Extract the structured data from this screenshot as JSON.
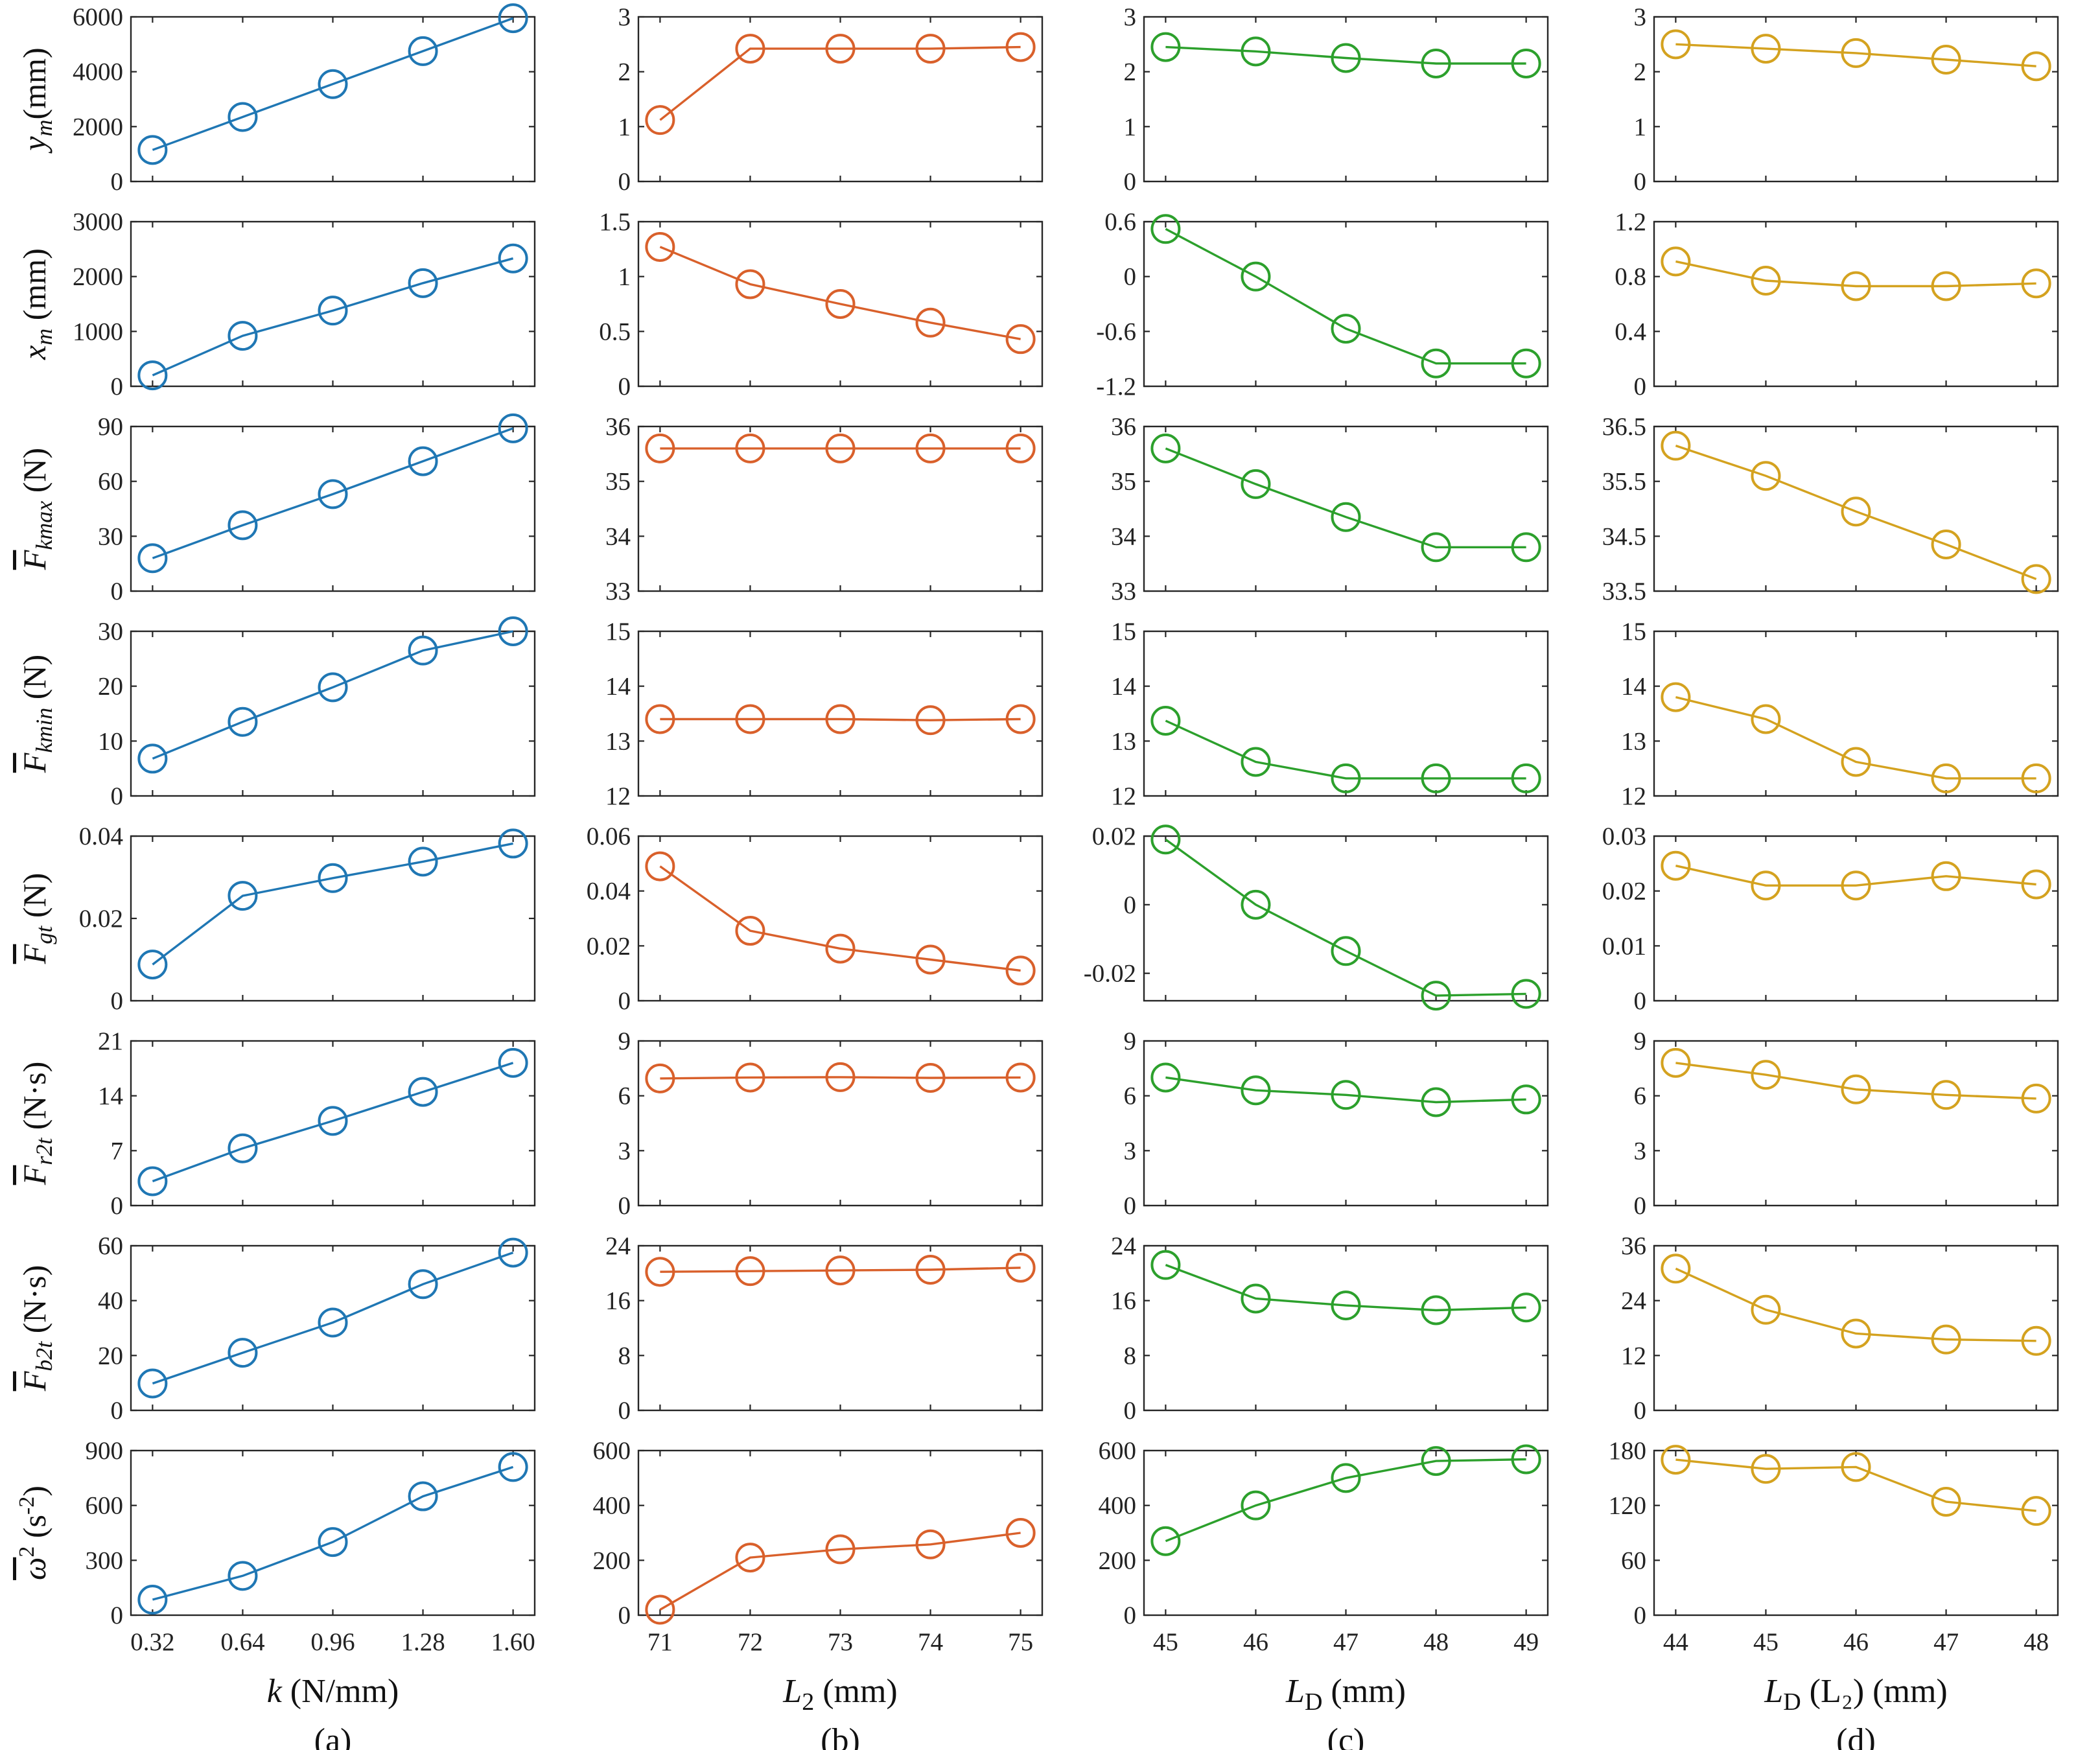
{
  "chart_data": {
    "type": "line",
    "panel_tags": [
      "(a)",
      "(b)",
      "(c)",
      "(d)"
    ],
    "columns": [
      {
        "tag": "(a)",
        "xlabel_main": "k",
        "xlabel_sub": "",
        "xlabel_unit": " (N/mm)",
        "x_ticks": [
          "0.32",
          "0.64",
          "0.96",
          "1.28",
          "1.60"
        ],
        "x": [
          0.32,
          0.64,
          0.96,
          1.28,
          1.6
        ],
        "color": "#1f77b4"
      },
      {
        "tag": "(b)",
        "xlabel_main": "L",
        "xlabel_sub": "2",
        "xlabel_unit": "  (mm)",
        "x_ticks": [
          "71",
          "72",
          "73",
          "74",
          "75"
        ],
        "x": [
          71,
          72,
          73,
          74,
          75
        ],
        "color": "#d9602b"
      },
      {
        "tag": "(c)",
        "xlabel_main": "L",
        "xlabel_sub": "D",
        "xlabel_unit": " (mm)",
        "x_ticks": [
          "45",
          "46",
          "47",
          "48",
          "49"
        ],
        "x": [
          45,
          46,
          47,
          48,
          49
        ],
        "color": "#2ca02c"
      },
      {
        "tag": "(d)",
        "xlabel_main": "L",
        "xlabel_sub": "D",
        "xlabel_unit": " (L₂)  (mm)",
        "x_ticks": [
          "44",
          "45",
          "46",
          "47",
          "48"
        ],
        "x": [
          44,
          45,
          46,
          47,
          48
        ],
        "color": "#d4a21f"
      }
    ],
    "rows": [
      {
        "ylabel_main": "y",
        "ylabel_sub": "m",
        "ylabel_unit": "(mm)",
        "overline": false,
        "panels": [
          {
            "ylim": [
              0,
              6000
            ],
            "yticks": [
              "0",
              "2000",
              "4000",
              "6000"
            ],
            "values": [
              1150,
              2350,
              3550,
              4750,
              5950
            ]
          },
          {
            "ylim": [
              0,
              3
            ],
            "yticks": [
              "0",
              "1",
              "2",
              "3"
            ],
            "values": [
              1.12,
              2.42,
              2.42,
              2.42,
              2.45
            ]
          },
          {
            "ylim": [
              0,
              3
            ],
            "yticks": [
              "0",
              "1",
              "2",
              "3"
            ],
            "values": [
              2.45,
              2.37,
              2.25,
              2.15,
              2.15
            ]
          },
          {
            "ylim": [
              0,
              3
            ],
            "yticks": [
              "0",
              "1",
              "2",
              "3"
            ],
            "values": [
              2.5,
              2.42,
              2.34,
              2.22,
              2.1
            ]
          }
        ]
      },
      {
        "ylabel_main": "x",
        "ylabel_sub": "m",
        "ylabel_unit": " (mm)",
        "overline": false,
        "panels": [
          {
            "ylim": [
              0,
              3000
            ],
            "yticks": [
              "0",
              "1000",
              "2000",
              "3000"
            ],
            "values": [
              200,
              920,
              1380,
              1880,
              2330
            ]
          },
          {
            "ylim": [
              0,
              1.5
            ],
            "yticks": [
              "0",
              "0.5",
              "1",
              "1.5"
            ],
            "values": [
              1.27,
              0.93,
              0.75,
              0.58,
              0.43
            ]
          },
          {
            "ylim": [
              -1.2,
              0.6
            ],
            "yticks": [
              "-1.2",
              "-0.6",
              "0",
              "0.6"
            ],
            "values": [
              0.52,
              0.0,
              -0.57,
              -0.95,
              -0.95
            ]
          },
          {
            "ylim": [
              0,
              1.2
            ],
            "yticks": [
              "0",
              "0.4",
              "0.8",
              "1.2"
            ],
            "values": [
              0.91,
              0.77,
              0.73,
              0.73,
              0.75
            ]
          }
        ]
      },
      {
        "ylabel_main": "F",
        "ylabel_sub": "kmax",
        "ylabel_unit": " (N)",
        "overline": true,
        "panels": [
          {
            "ylim": [
              0,
              90
            ],
            "yticks": [
              "0",
              "30",
              "60",
              "90"
            ],
            "values": [
              18,
              36,
              53,
              71,
              89
            ]
          },
          {
            "ylim": [
              33,
              36
            ],
            "yticks": [
              "33",
              "34",
              "35",
              "36"
            ],
            "values": [
              35.6,
              35.6,
              35.6,
              35.6,
              35.6
            ]
          },
          {
            "ylim": [
              33,
              36
            ],
            "yticks": [
              "33",
              "34",
              "35",
              "36"
            ],
            "values": [
              35.6,
              34.95,
              34.35,
              33.8,
              33.8
            ]
          },
          {
            "ylim": [
              33.5,
              36.5
            ],
            "yticks": [
              "33.5",
              "34.5",
              "35.5",
              "36.5"
            ],
            "values": [
              36.15,
              35.6,
              34.95,
              34.35,
              33.72
            ]
          }
        ]
      },
      {
        "ylabel_main": "F",
        "ylabel_sub": "kmin",
        "ylabel_unit": " (N)",
        "overline": true,
        "panels": [
          {
            "ylim": [
              0,
              30
            ],
            "yticks": [
              "0",
              "10",
              "20",
              "30"
            ],
            "values": [
              6.8,
              13.5,
              19.8,
              26.5,
              30.0
            ]
          },
          {
            "ylim": [
              12,
              15
            ],
            "yticks": [
              "12",
              "13",
              "14",
              "15"
            ],
            "values": [
              13.4,
              13.4,
              13.4,
              13.38,
              13.4
            ]
          },
          {
            "ylim": [
              12,
              15
            ],
            "yticks": [
              "12",
              "13",
              "14",
              "15"
            ],
            "values": [
              13.37,
              12.62,
              12.32,
              12.32,
              12.32
            ]
          },
          {
            "ylim": [
              12,
              15
            ],
            "yticks": [
              "12",
              "13",
              "14",
              "15"
            ],
            "values": [
              13.8,
              13.4,
              12.62,
              12.32,
              12.32
            ]
          }
        ]
      },
      {
        "ylabel_main": "F",
        "ylabel_sub": "gt",
        "ylabel_unit": " (N)",
        "overline": true,
        "panels": [
          {
            "ylim": [
              0,
              0.04
            ],
            "yticks": [
              "0",
              "0.02",
              "0.04"
            ],
            "values": [
              0.0088,
              0.0255,
              0.0298,
              0.0338,
              0.0382
            ]
          },
          {
            "ylim": [
              0,
              0.06
            ],
            "yticks": [
              "0",
              "0.02",
              "0.04",
              "0.06"
            ],
            "values": [
              0.049,
              0.0255,
              0.019,
              0.015,
              0.011
            ]
          },
          {
            "ylim": [
              -0.028,
              0.02
            ],
            "yticks": [
              "-0.02",
              "0",
              "0.02"
            ],
            "values": [
              0.019,
              0.0,
              -0.0135,
              -0.0265,
              -0.026
            ]
          },
          {
            "ylim": [
              0,
              0.03
            ],
            "yticks": [
              "0",
              "0.01",
              "0.02",
              "0.03"
            ],
            "values": [
              0.0246,
              0.021,
              0.021,
              0.0227,
              0.0212
            ]
          }
        ]
      },
      {
        "ylabel_main": "F",
        "ylabel_sub": "r2t",
        "ylabel_unit": " (N·s)",
        "overline": true,
        "panels": [
          {
            "ylim": [
              0,
              21
            ],
            "yticks": [
              "0",
              "7",
              "14",
              "21"
            ],
            "values": [
              3.1,
              7.3,
              10.8,
              14.5,
              18.2
            ]
          },
          {
            "ylim": [
              0,
              9
            ],
            "yticks": [
              "0",
              "3",
              "6",
              "9"
            ],
            "values": [
              6.95,
              7.0,
              7.02,
              6.98,
              7.0
            ]
          },
          {
            "ylim": [
              0,
              9
            ],
            "yticks": [
              "0",
              "3",
              "6",
              "9"
            ],
            "values": [
              7.0,
              6.3,
              6.05,
              5.65,
              5.8
            ]
          },
          {
            "ylim": [
              0,
              9
            ],
            "yticks": [
              "0",
              "3",
              "6",
              "9"
            ],
            "values": [
              7.8,
              7.15,
              6.35,
              6.05,
              5.85
            ]
          }
        ]
      },
      {
        "ylabel_main": "F",
        "ylabel_sub": "b2t",
        "ylabel_unit": " (N·s)",
        "overline": true,
        "panels": [
          {
            "ylim": [
              0,
              60
            ],
            "yticks": [
              "0",
              "20",
              "40",
              "60"
            ],
            "values": [
              9.8,
              21,
              32,
              46,
              57.5
            ]
          },
          {
            "ylim": [
              0,
              24
            ],
            "yticks": [
              "0",
              "8",
              "16",
              "24"
            ],
            "values": [
              20.2,
              20.3,
              20.4,
              20.5,
              20.8
            ]
          },
          {
            "ylim": [
              0,
              24
            ],
            "yticks": [
              "0",
              "8",
              "16",
              "24"
            ],
            "values": [
              21.2,
              16.3,
              15.3,
              14.6,
              15.0
            ]
          },
          {
            "ylim": [
              0,
              36
            ],
            "yticks": [
              "0",
              "12",
              "24",
              "36"
            ],
            "values": [
              31,
              22,
              16.8,
              15.5,
              15.2
            ]
          }
        ]
      },
      {
        "ylabel_main": "ω",
        "ylabel_sub": "",
        "ylabel_unit": "2 (s-2)",
        "overline": true,
        "panels": [
          {
            "ylim": [
              0,
              900
            ],
            "yticks": [
              "0",
              "300",
              "600",
              "900"
            ],
            "values": [
              85,
              215,
              400,
              650,
              810
            ]
          },
          {
            "ylim": [
              0,
              600
            ],
            "yticks": [
              "0",
              "200",
              "400",
              "600"
            ],
            "values": [
              20,
              210,
              240,
              258,
              300
            ]
          },
          {
            "ylim": [
              0,
              600
            ],
            "yticks": [
              "0",
              "200",
              "400",
              "600"
            ],
            "values": [
              270,
              400,
              500,
              562,
              568
            ]
          },
          {
            "ylim": [
              0,
              180
            ],
            "yticks": [
              "0",
              "60",
              "120",
              "180"
            ],
            "values": [
              170,
              160,
              162,
              124,
              114
            ]
          }
        ]
      }
    ]
  }
}
